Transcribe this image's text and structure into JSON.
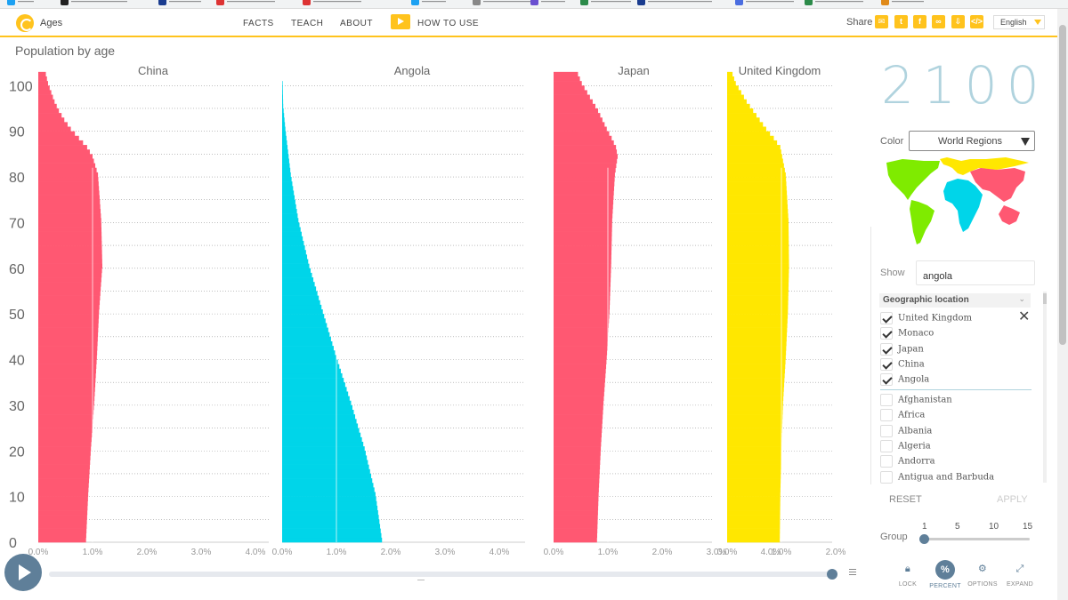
{
  "app": {
    "title": "Ages",
    "nav": [
      {
        "label": "FACTS"
      },
      {
        "label": "TEACH"
      },
      {
        "label": "ABOUT"
      },
      {
        "label": "HOW TO USE"
      }
    ],
    "share_label": "Share",
    "language": "English"
  },
  "page_title": "Population by age",
  "chart_data": [
    {
      "type": "bar",
      "title": "China",
      "color": "#ff5872",
      "x_unit": "percent of population",
      "xlim": [
        0,
        4.0
      ],
      "x_ticks": [
        "0.0%",
        "1.0%",
        "2.0%",
        "3.0%",
        "4.0%"
      ],
      "ylim": [
        0,
        100
      ],
      "y_ticks": [
        "0",
        "10",
        "20",
        "30",
        "40",
        "50",
        "60",
        "70",
        "80",
        "90",
        "100"
      ],
      "ages": [
        0,
        10,
        20,
        30,
        40,
        50,
        60,
        70,
        80,
        84,
        86,
        88,
        90,
        92,
        94,
        96,
        98,
        100,
        102
      ],
      "values": [
        0.88,
        0.92,
        0.97,
        1.03,
        1.08,
        1.12,
        1.18,
        1.16,
        1.1,
        1.0,
        0.9,
        0.75,
        0.6,
        0.48,
        0.38,
        0.3,
        0.24,
        0.18,
        0.14
      ],
      "reference_line": 1.0
    },
    {
      "type": "bar",
      "title": "Angola",
      "color": "#00d5e9",
      "x_unit": "percent of population",
      "xlim": [
        0,
        4.0
      ],
      "x_ticks": [
        "0.0%",
        "1.0%",
        "2.0%",
        "3.0%",
        "4.0%"
      ],
      "ylim": [
        0,
        100
      ],
      "ages": [
        0,
        10,
        20,
        30,
        40,
        50,
        60,
        70,
        80,
        90,
        95,
        100
      ],
      "values": [
        1.84,
        1.72,
        1.52,
        1.27,
        1.0,
        0.75,
        0.5,
        0.3,
        0.16,
        0.06,
        0.02,
        0.01
      ],
      "reference_line": 1.0
    },
    {
      "type": "bar",
      "title": "Japan",
      "color": "#ff5872",
      "x_unit": "percent of population",
      "xlim": [
        0,
        4.0
      ],
      "x_ticks": [
        "0.0%",
        "1.0%",
        "2.0%",
        "3.0%",
        "4.0%"
      ],
      "ylim": [
        0,
        100
      ],
      "ages": [
        0,
        10,
        20,
        30,
        40,
        50,
        60,
        70,
        80,
        84,
        86,
        88,
        90,
        92,
        94,
        96,
        98,
        100,
        102
      ],
      "values": [
        0.8,
        0.83,
        0.87,
        0.92,
        0.98,
        1.03,
        1.06,
        1.08,
        1.13,
        1.18,
        1.15,
        1.07,
        0.98,
        0.9,
        0.82,
        0.72,
        0.62,
        0.52,
        0.45
      ],
      "reference_line": 1.0
    },
    {
      "type": "bar",
      "title": "United Kingdom",
      "color": "#ffe700",
      "x_unit": "percent of population",
      "xlim": [
        0,
        4.0
      ],
      "x_ticks": [
        "0.0%",
        "1.0%",
        "2.0%"
      ],
      "ylim": [
        0,
        100
      ],
      "ages": [
        0,
        10,
        20,
        30,
        40,
        50,
        60,
        70,
        80,
        86,
        88,
        90,
        92,
        94,
        96,
        98,
        100,
        102
      ],
      "values": [
        0.97,
        0.98,
        1.0,
        1.03,
        1.08,
        1.12,
        1.14,
        1.13,
        1.08,
        0.98,
        0.86,
        0.72,
        0.6,
        0.48,
        0.36,
        0.26,
        0.16,
        0.1
      ],
      "reference_line": 1.0
    }
  ],
  "panel": {
    "year": "2100",
    "color_label": "Color",
    "color_value": "World Regions",
    "region_colors": {
      "americas": "#7feb00",
      "africa": "#00d5e9",
      "europe": "#ffe700",
      "asia": "#ff5872"
    },
    "show_label": "Show",
    "search_value": "angola",
    "geo_header": "Geographic location",
    "selected": [
      {
        "label": "United Kingdom"
      },
      {
        "label": "Monaco"
      },
      {
        "label": "Japan"
      },
      {
        "label": "China"
      },
      {
        "label": "Angola"
      }
    ],
    "unselected": [
      {
        "label": "Afghanistan"
      },
      {
        "label": "Africa"
      },
      {
        "label": "Albania"
      },
      {
        "label": "Algeria"
      },
      {
        "label": "Andorra"
      },
      {
        "label": "Antigua and Barbuda"
      }
    ],
    "reset_label": "RESET",
    "apply_label": "APPLY",
    "group_label": "Group",
    "group_ticks": [
      "1",
      "5",
      "10",
      "15"
    ],
    "group_value": 1,
    "tools": [
      {
        "label": "LOCK",
        "icon": "lock-icon"
      },
      {
        "label": "PERCENT",
        "icon": "percent-icon"
      },
      {
        "label": "OPTIONS",
        "icon": "gear-icon"
      },
      {
        "label": "EXPAND",
        "icon": "expand-icon"
      }
    ]
  },
  "timeline": {
    "position": 1.0
  }
}
